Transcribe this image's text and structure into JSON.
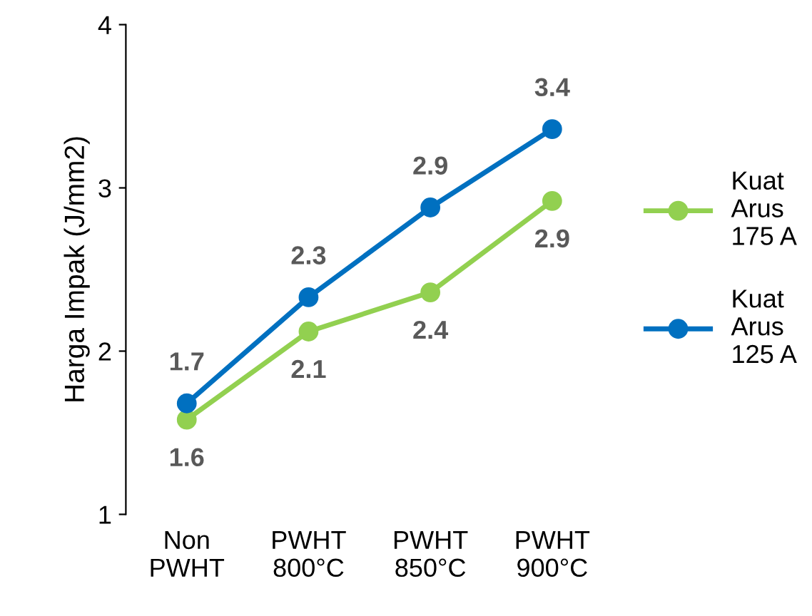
{
  "chart_data": {
    "type": "line",
    "ylabel": "Harga Impak (J/mm2)",
    "categories": [
      "Non PWHT",
      "PWHT 800°C",
      "PWHT 850°C",
      "PWHT 900°C"
    ],
    "series": [
      {
        "name": "Kuat Arus 175 A",
        "color": "#92d050",
        "values": [
          1.58,
          2.12,
          2.36,
          2.92
        ],
        "value_labels": [
          "1.6",
          "2.1",
          "2.4",
          "2.9"
        ]
      },
      {
        "name": "Kuat Arus 125 A",
        "color": "#0070c0",
        "values": [
          1.68,
          2.33,
          2.88,
          3.36
        ],
        "value_labels": [
          "1.7",
          "2.3",
          "2.9",
          "3.4"
        ]
      }
    ],
    "ylim": [
      1,
      4
    ],
    "yticks": [
      1,
      2,
      3,
      4
    ],
    "grid": false,
    "legend": "right",
    "marker": "circle",
    "line_style": "solid"
  }
}
